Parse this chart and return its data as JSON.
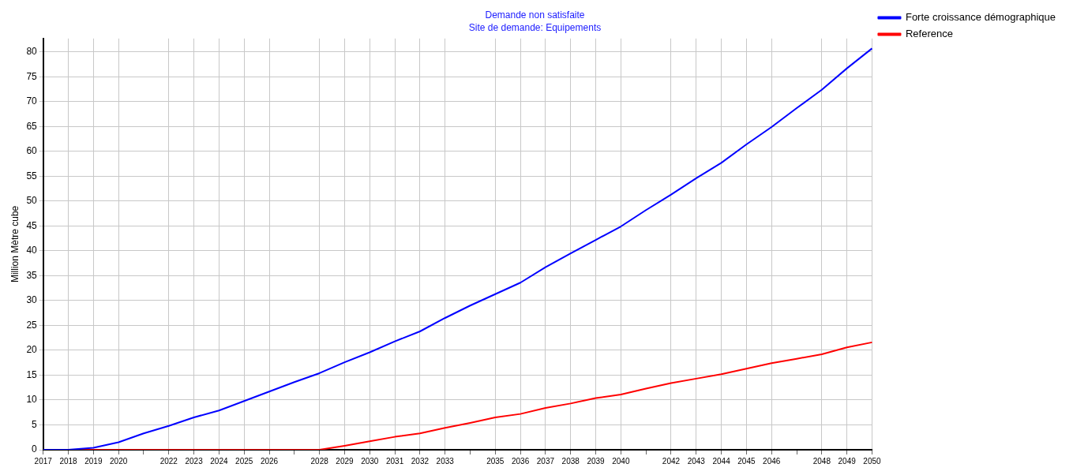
{
  "chart_data": {
    "type": "line",
    "title": "Demande non satisfaite",
    "subtitle": "Site de demande: Equipements",
    "ylabel": "Million Mètre cube",
    "categories": [
      "2017",
      "2018",
      "2019",
      "2020",
      null,
      "2022",
      "2023",
      "2024",
      "2025",
      "2026",
      null,
      "2028",
      "2029",
      "2030",
      "2031",
      "2032",
      "2033",
      null,
      "2035",
      "2036",
      "2037",
      "2038",
      "2039",
      "2040",
      null,
      "2042",
      "2043",
      "2044",
      "2045",
      "2046",
      null,
      "2048",
      "2049",
      "2050"
    ],
    "series": [
      {
        "name": "Forte croissance démographique",
        "color": "#0000ff",
        "values": [
          0,
          0,
          0.4,
          1.5,
          3.3,
          4.8,
          6.5,
          7.9,
          9.8,
          11.7,
          13.6,
          15.4,
          17.6,
          19.6,
          21.8,
          23.8,
          26.5,
          29.0,
          31.3,
          33.6,
          36.7,
          39.5,
          42.2,
          44.9,
          48.2,
          51.3,
          54.6,
          57.7,
          61.4,
          64.9,
          68.7,
          72.4,
          76.7,
          80.7
        ]
      },
      {
        "name": "Reference",
        "color": "#ff0000",
        "values": [
          0,
          0,
          0,
          0,
          0,
          0,
          0,
          0,
          0,
          0,
          0,
          0,
          0.8,
          1.7,
          2.6,
          3.3,
          4.4,
          5.4,
          6.5,
          7.2,
          8.4,
          9.3,
          10.4,
          11.1,
          12.3,
          13.4,
          14.3,
          15.2,
          16.3,
          17.4,
          18.3,
          19.2,
          20.6,
          21.6
        ]
      }
    ],
    "ylim": [
      0,
      82.7
    ],
    "yticks": [
      0,
      5,
      10,
      15,
      20,
      25,
      30,
      35,
      40,
      45,
      50,
      55,
      60,
      65,
      70,
      75,
      80
    ],
    "grid": true,
    "legend": "top right",
    "marker": "none",
    "line_style": "solid"
  }
}
